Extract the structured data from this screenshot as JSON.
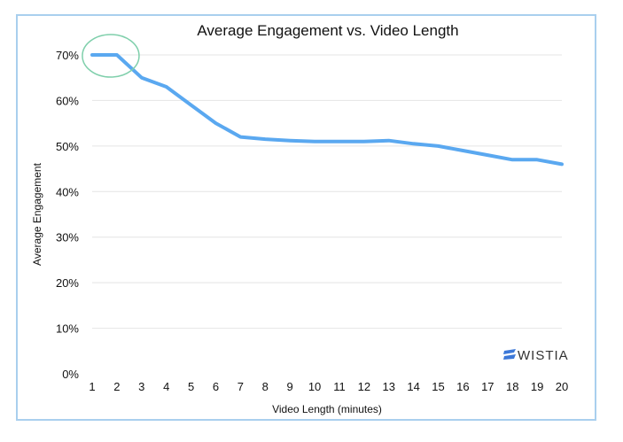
{
  "chart_data": {
    "type": "line",
    "title": "Average Engagement vs. Video Length",
    "xlabel": "Video Length (minutes)",
    "ylabel": "Average Engagement",
    "x": [
      1,
      2,
      3,
      4,
      5,
      6,
      7,
      8,
      9,
      10,
      11,
      12,
      13,
      14,
      15,
      16,
      17,
      18,
      19,
      20
    ],
    "series": [
      {
        "values": [
          70,
          70,
          65,
          63,
          59,
          55,
          52,
          51.5,
          51.2,
          51,
          51,
          51,
          51.2,
          50.5,
          50,
          49,
          48,
          47,
          47,
          46
        ]
      }
    ],
    "y_ticks": [
      "0%",
      "10%",
      "20%",
      "30%",
      "40%",
      "50%",
      "60%",
      "70%"
    ],
    "ylim": [
      0,
      70
    ],
    "xlim": [
      1,
      20
    ],
    "grid": "horizontal",
    "line_color": "#5aa8f0",
    "highlight_circle": {
      "x_range": [
        1,
        2
      ],
      "y": 70,
      "color": "#7fcfab"
    }
  },
  "brand": {
    "name": "WISTIA",
    "color": "#3c78d8",
    "icon": "wistia-logo-icon"
  }
}
